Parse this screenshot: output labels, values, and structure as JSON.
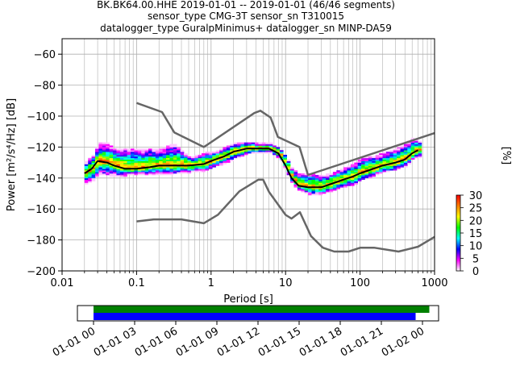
{
  "title": [
    "BK.BK64.00.HHE   2019-01-01 -- 2019-01-01  (46/46 segments)",
    "sensor_type CMG-3T sensor_sn T310015",
    "datalogger_type GuralpMinimus+ datalogger_sn MINP-DA59"
  ],
  "chart_data": [
    {
      "type": "heatmap",
      "title": "",
      "xlabel": "Period [s]",
      "ylabel": "Power [m²/s⁴/Hz] [dB]",
      "xscale": "log",
      "xlim": [
        0.01,
        1000
      ],
      "ylim": [
        -200,
        -50
      ],
      "xticks": [
        0.01,
        0.1,
        1,
        10,
        100,
        1000
      ],
      "xtick_labels": [
        "0.01",
        "0.1",
        "1",
        "10",
        "100",
        "1000"
      ],
      "yticks": [
        -200,
        -180,
        -160,
        -140,
        -120,
        -100,
        -80,
        -60
      ],
      "grid": true,
      "colormap": "pqlx",
      "colorbar": {
        "label": "[%]",
        "range": [
          0,
          30
        ],
        "ticks": [
          0,
          5,
          10,
          15,
          20,
          25,
          30
        ],
        "colors": [
          "#ffffff",
          "#ff00ff",
          "#0000ff",
          "#00ffff",
          "#00ff00",
          "#ffff00",
          "#ff8000",
          "#ff0000"
        ]
      },
      "series": [
        {
          "name": "",
          "kind": "high noise model",
          "color": "#666666",
          "x": [
            0.1,
            0.22,
            0.32,
            0.8,
            3.8,
            4.6,
            6.3,
            7.9,
            15.4,
            20.0,
            1000.0
          ],
          "y": [
            -91.5,
            -97.4,
            -110.5,
            -120.0,
            -98.0,
            -96.5,
            -101.0,
            -113.5,
            -120.0,
            -138.0,
            -111.0
          ]
        },
        {
          "name": "",
          "kind": "low noise model",
          "color": "#666666",
          "x": [
            0.1,
            0.17,
            0.4,
            0.8,
            1.24,
            2.4,
            4.3,
            5.0,
            6.0,
            10.0,
            12.0,
            15.6,
            21.9,
            31.6,
            45.0,
            70.0,
            101.0,
            154.0,
            328.0,
            600.0,
            1000.0
          ],
          "y": [
            -168.0,
            -166.7,
            -166.7,
            -169.2,
            -163.7,
            -148.6,
            -141.1,
            -141.1,
            -149.0,
            -163.8,
            -166.2,
            -162.1,
            -177.5,
            -185.0,
            -187.5,
            -187.5,
            -185.0,
            -185.0,
            -187.5,
            -184.4,
            -178.0
          ]
        },
        {
          "name": "",
          "kind": "mode",
          "color": "#000000",
          "x": [
            0.02,
            0.025,
            0.03,
            0.04,
            0.05,
            0.07,
            0.1,
            0.15,
            0.2,
            0.3,
            0.5,
            0.8,
            1.0,
            1.5,
            2.0,
            3.0,
            4.0,
            6.0,
            8.0,
            10.0,
            12.0,
            15.0,
            20.0,
            30.0,
            40.0,
            60.0,
            80.0,
            100.0,
            150.0,
            200.0,
            300.0,
            400.0,
            500.0,
            600.0
          ],
          "y": [
            -137,
            -134,
            -129,
            -130,
            -132,
            -134,
            -134,
            -133,
            -132,
            -132,
            -132,
            -131,
            -129,
            -126,
            -123,
            -121,
            -121,
            -121,
            -124,
            -132,
            -140,
            -145,
            -146,
            -146,
            -144,
            -141,
            -139,
            -137,
            -134,
            -132,
            -130,
            -128,
            -124,
            -122
          ]
        }
      ],
      "density_band": {
        "description": "spread of PSD values around the mode",
        "x": [
          0.02,
          0.025,
          0.03,
          0.04,
          0.05,
          0.07,
          0.1,
          0.15,
          0.2,
          0.3,
          0.5,
          0.8,
          1.0,
          1.5,
          2.0,
          3.0,
          4.0,
          6.0,
          8.0,
          10.0,
          12.0,
          15.0,
          20.0,
          30.0,
          40.0,
          60.0,
          80.0,
          100.0,
          150.0,
          200.0,
          300.0,
          400.0,
          500.0,
          600.0
        ],
        "upper": [
          -130,
          -125,
          -118,
          -118,
          -122,
          -121,
          -122,
          -121,
          -122,
          -118,
          -127,
          -124,
          -124,
          -120,
          -118,
          -117,
          -118,
          -118,
          -121,
          -127,
          -135,
          -138,
          -137,
          -139,
          -137,
          -133,
          -131,
          -127,
          -126,
          -124,
          -121,
          -118,
          -114,
          -117
        ],
        "lower": [
          -144,
          -142,
          -138,
          -139,
          -139,
          -139,
          -138,
          -138,
          -138,
          -138,
          -137,
          -136,
          -134,
          -131,
          -128,
          -125,
          -124,
          -124,
          -128,
          -137,
          -145,
          -149,
          -151,
          -151,
          -149,
          -146,
          -145,
          -142,
          -139,
          -137,
          -135,
          -133,
          -128,
          -127
        ]
      }
    },
    {
      "type": "timeline",
      "title": "",
      "xlim": [
        "2019-01-01 00:00",
        "2019-01-02 01:00"
      ],
      "xtick_labels": [
        "01-01 00",
        "01-01 03",
        "01-01 06",
        "01-01 09",
        "01-01 12",
        "01-01 15",
        "01-01 18",
        "01-01 21",
        "01-02 00"
      ],
      "xticks_hours": [
        0,
        3,
        6,
        9,
        12,
        15,
        18,
        21,
        24
      ],
      "bars": [
        {
          "name": "",
          "color": "#008000",
          "start_hour": 0.0,
          "end_hour": 24.5
        },
        {
          "name": "",
          "color": "#0000ff",
          "start_hour": 0.0,
          "end_hour": 23.5
        }
      ]
    }
  ]
}
